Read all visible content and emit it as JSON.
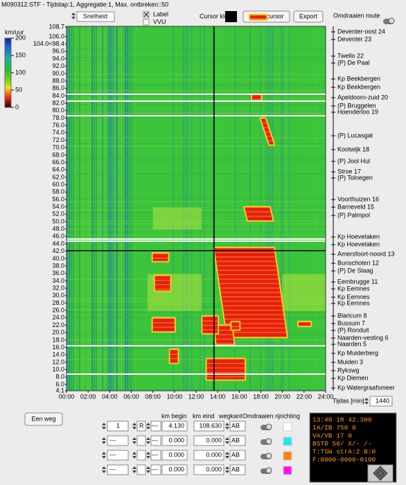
{
  "header": {
    "title": "M090312.STF - Tijdstap:1, Aggregatie:1, Max. ontbreken::50",
    "dropdown": "Snelheid",
    "checkbox_label": "Label",
    "checkbox_vvu": "VVU",
    "cursor_color": "Cursor kleur",
    "reset_button": "Reset cursor",
    "export_button": "Export",
    "reverse_route": "Omdraaien route"
  },
  "colorbar": {
    "unit": "km/uur",
    "ticks": [
      200,
      150,
      100,
      50,
      0
    ]
  },
  "km_axis": [
    "108.7",
    "106.0",
    "104.0<98.4",
    "96.0",
    "94.0",
    "92.0",
    "90.0",
    "88.0",
    "86.0",
    "84.0",
    "82.0",
    "80.0",
    "78.0",
    "76.0",
    "74.0",
    "72.0",
    "70.0",
    "68.0",
    "66.0",
    "64.0",
    "62.0",
    "60.0",
    "58.0",
    "56.0",
    "54.0",
    "52.0",
    "50.0",
    "48.0",
    "46.0",
    "44.0",
    "42.0",
    "40.0",
    "38.0",
    "36.0",
    "34.0",
    "32.0",
    "30.0",
    "28.0",
    "26.0",
    "24.0",
    "22.0",
    "20.0",
    "18.0",
    "16.0",
    "14.0",
    "12.0",
    "10.0",
    "8.0",
    "6.0",
    "4.1"
  ],
  "locations": [
    "Deventer-oost 24",
    "Deventer 23",
    "Twello 22",
    "(P) De Paal",
    "Kp Beekbergen",
    "Kp Beekbergen",
    "Apeldoorn-zuid 20",
    "(P) Bruggelen",
    "Hoenderloo 19",
    "(P) Lucasgat",
    "Kootwijk 18",
    "(P) Jool Hul",
    "Stroe 17",
    "(P) Tolnegen",
    "Voorthuizen 16",
    "Barneveld 15",
    "(P) Palmpol",
    "Kp Hoevelaken",
    "Kp Hoevelaken",
    "Amersfoort-noord 13",
    "Bunschoten 12",
    "(P) De Slaag",
    "Eembrugge 11",
    "Kp Eemnes",
    "Kp Eemnes",
    "Kp Eemnes",
    "Blaricum 8",
    "Bussum 7",
    "(P) Ronduit",
    "Naarden-vesting 6",
    "Naarden 5",
    "Kp Muiderberg",
    "Muiden 3",
    "Rykswg",
    "Kp Diemen",
    "Kp Watergraafsmeer"
  ],
  "time_axis": [
    "00:00",
    "02:00",
    "04:00",
    "06:00",
    "08:00",
    "10:00",
    "12:00",
    "14:00",
    "16:00",
    "18:00",
    "20:00",
    "22:00",
    "24:00"
  ],
  "time_label": "Tijdas [min]",
  "time_value": "1440",
  "one_way_button": "Een weg",
  "table": {
    "headers": [
      "km begin",
      "km eind",
      "wegkant",
      "Omdraaien rijrichting"
    ],
    "rows": [
      [
        "1",
        "R",
        "---",
        "4.130",
        "108.630",
        "AB"
      ],
      [
        "---",
        "",
        "---",
        "0.000",
        "0.000",
        "AB"
      ],
      [
        "---",
        "",
        "---",
        "0.000",
        "0.000",
        "AB"
      ],
      [
        "---",
        "",
        "---",
        "0.000",
        "0.000",
        "AB"
      ]
    ]
  },
  "info_panel": [
    "13:40  1R 42.300",
    "IA/IB  750    0",
    "VA/VB   17    0",
    "BSTD 50/ X/- /-",
    "T:TSW strA:2 B:0",
    "F:0000-0000-0100"
  ]
}
